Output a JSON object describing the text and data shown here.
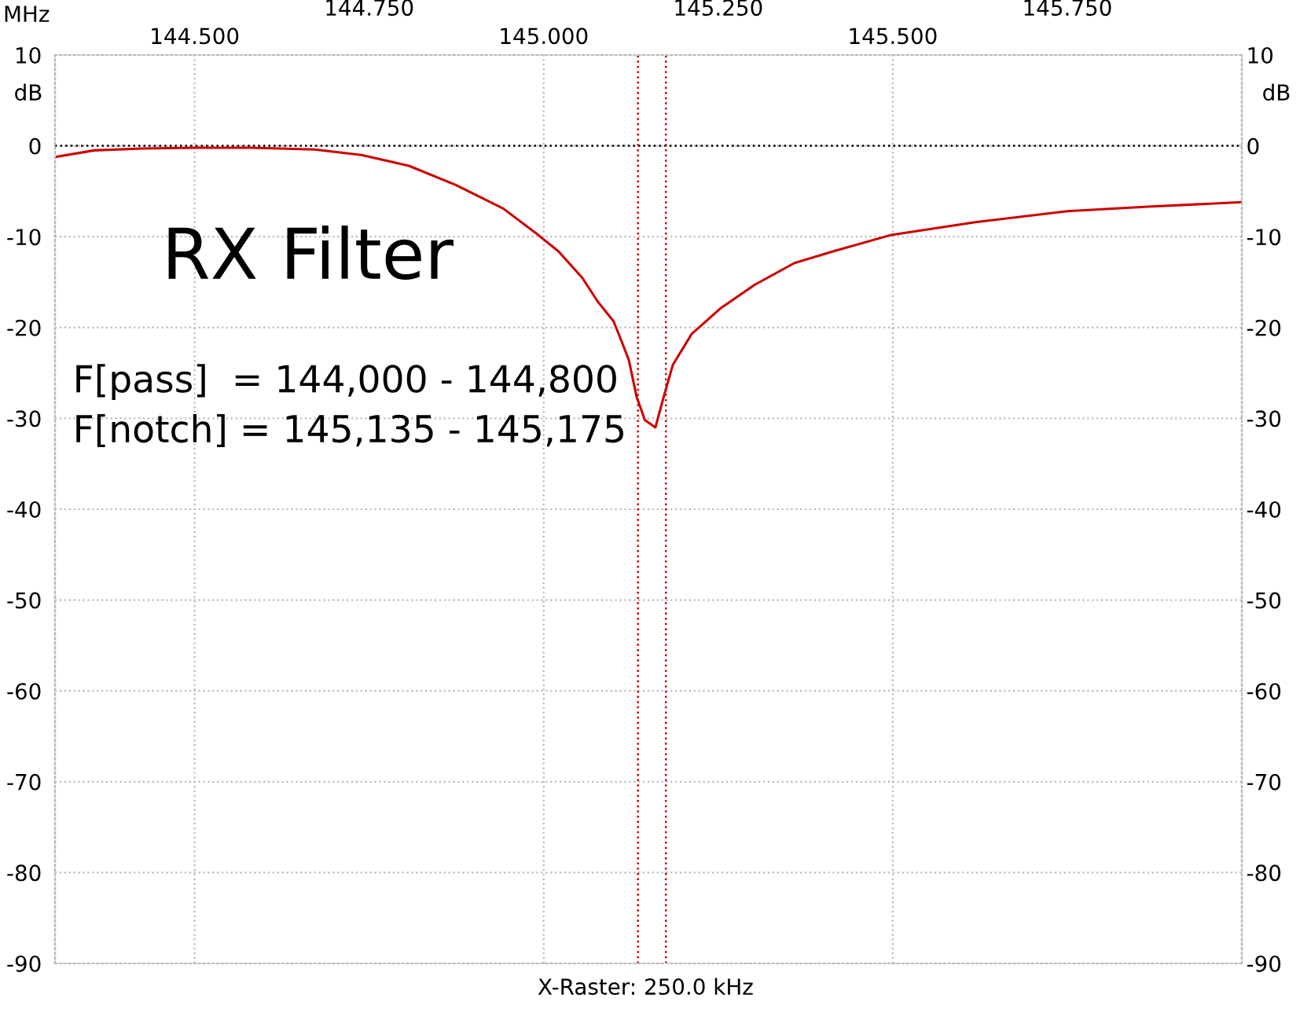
{
  "chart_data": {
    "type": "line",
    "title": "RX Filter",
    "xlabel": "MHz",
    "ylabel": "dB",
    "y2label": "dB",
    "annotations": [
      "F[pass]  = 144,000 - 144,800",
      "F[notch] = 145,135 - 145,175",
      "X-Raster: 250.0 kHz"
    ],
    "series": [
      {
        "color": "#cc0000",
        "x": [
          144.302,
          144.356,
          144.424,
          144.5,
          144.582,
          144.672,
          144.739,
          144.807,
          144.874,
          144.942,
          144.987,
          145.021,
          145.055,
          145.077,
          145.1,
          145.111,
          145.122,
          145.133,
          145.145,
          145.151,
          145.16,
          145.172,
          145.185,
          145.212,
          145.253,
          145.302,
          145.359,
          145.415,
          145.498,
          145.618,
          145.75,
          145.865,
          146.0
        ],
        "values": [
          -1.2,
          -0.5,
          -0.3,
          -0.2,
          -0.2,
          -0.4,
          -1.0,
          -2.2,
          -4.3,
          -6.9,
          -9.5,
          -11.6,
          -14.5,
          -17.1,
          -19.3,
          -21.4,
          -23.6,
          -27.6,
          -30.2,
          -30.5,
          -31.0,
          -27.6,
          -24.1,
          -20.7,
          -17.9,
          -15.3,
          -12.9,
          -11.6,
          -9.8,
          -8.4,
          -7.2,
          -6.7,
          -6.2
        ]
      }
    ],
    "xlim": [
      144.3,
      146.0
    ],
    "xticks": [
      {
        "value": 144.5,
        "label": "144.500"
      },
      {
        "value": 145.0,
        "label": "145.000"
      },
      {
        "value": 145.5,
        "label": "145.500"
      }
    ],
    "x2lim": [
      144.3,
      146.0
    ],
    "x2ticks": [
      {
        "value": 144.75,
        "label": "144.750"
      },
      {
        "value": 145.25,
        "label": "145.250"
      },
      {
        "value": 145.75,
        "label": "145.750"
      }
    ],
    "ylim": [
      -90,
      10
    ],
    "yticks": [
      10,
      0,
      -10,
      -20,
      -30,
      -40,
      -50,
      -60,
      -70,
      -80,
      -90
    ],
    "y2lim": [
      -90,
      10
    ],
    "y2ticks": [
      10,
      0,
      -10,
      -20,
      -30,
      -40,
      -50,
      -60,
      -70,
      -80,
      -90
    ],
    "ref_lines": [
      {
        "axis": "y",
        "value": 0,
        "color": "#000000",
        "line_style": "dotted"
      },
      {
        "axis": "x",
        "value": 145.135,
        "color": "#cc0000",
        "line_style": "dotted"
      },
      {
        "axis": "x",
        "value": 145.175,
        "color": "#cc0000",
        "line_style": "dotted"
      }
    ],
    "grid": true,
    "line_style": "solid",
    "marker": "none",
    "legend": false
  }
}
